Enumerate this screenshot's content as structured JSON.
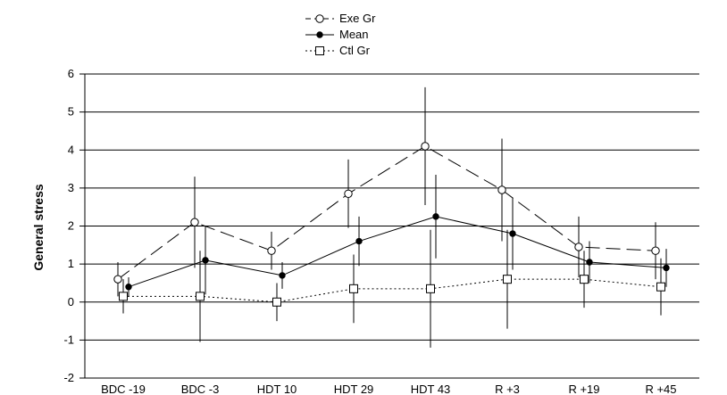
{
  "chart_data": {
    "type": "line",
    "categories": [
      "BDC -19",
      "BDC -3",
      "HDT 10",
      "HDT 29",
      "HDT 43",
      "R +3",
      "R +19",
      "R +45"
    ],
    "ylabel": "General stress",
    "xlabel": "",
    "ylim": [
      -2,
      6
    ],
    "yticks": [
      -2,
      -1,
      0,
      1,
      2,
      3,
      4,
      5,
      6
    ],
    "grid": true,
    "legend_position": "top-center",
    "series": [
      {
        "name": "Exe Gr",
        "marker": "open-circle",
        "line": "long-dash",
        "values": [
          0.6,
          2.1,
          1.35,
          2.85,
          4.1,
          2.95,
          1.45,
          1.35
        ],
        "errors": [
          0.45,
          1.2,
          0.5,
          0.9,
          1.55,
          1.35,
          0.8,
          0.75
        ]
      },
      {
        "name": "Mean",
        "marker": "filled-circle",
        "line": "solid",
        "values": [
          0.4,
          1.1,
          0.7,
          1.6,
          2.25,
          1.8,
          1.05,
          0.9
        ],
        "errors": [
          0.25,
          0.9,
          0.35,
          0.65,
          1.1,
          0.95,
          0.55,
          0.5
        ]
      },
      {
        "name": "Ctl Gr",
        "marker": "open-square",
        "line": "dotted",
        "values": [
          0.15,
          0.15,
          0.0,
          0.35,
          0.35,
          0.6,
          0.6,
          0.4
        ],
        "errors": [
          0.45,
          1.2,
          0.5,
          0.9,
          1.55,
          1.3,
          0.75,
          0.75
        ]
      }
    ]
  }
}
